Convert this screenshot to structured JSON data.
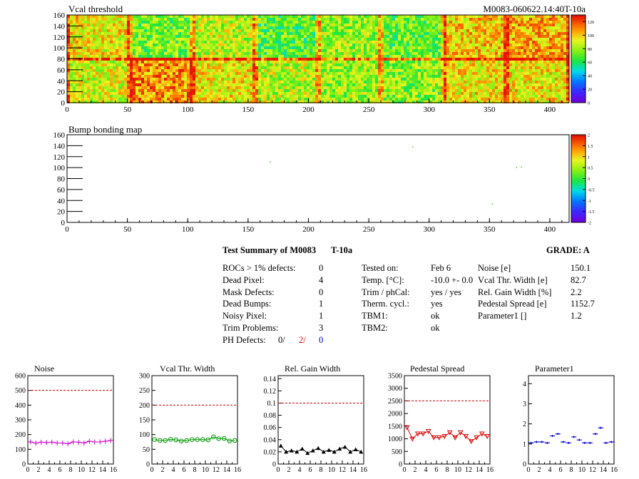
{
  "vcal": {
    "title": "Vcal threshold",
    "id_label": "M0083-060622.14:40T-10a",
    "x_ticks": [
      "0",
      "50",
      "100",
      "150",
      "200",
      "250",
      "300",
      "350",
      "400"
    ],
    "y_ticks": [
      "0",
      "20",
      "40",
      "60",
      "80",
      "100",
      "120",
      "140",
      "160"
    ],
    "palette_ticks": [
      "0",
      "20",
      "40",
      "60",
      "80",
      "100",
      "120"
    ]
  },
  "bump": {
    "title": "Bump bonding map",
    "x_ticks": [
      "0",
      "50",
      "100",
      "150",
      "200",
      "250",
      "300",
      "350",
      "400"
    ],
    "y_ticks": [
      "0",
      "20",
      "40",
      "60",
      "80",
      "100",
      "120",
      "140",
      "160"
    ],
    "palette_ticks": [
      "-2",
      "-1.5",
      "-1",
      "-0.5",
      "0",
      "0.5",
      "1",
      "1.5",
      "2"
    ]
  },
  "summary": {
    "title": "Test Summary of M0083",
    "temp_tag": "T-10a",
    "grade": "GRADE:  A",
    "rows": [
      {
        "label": "ROCs > 1% defects:",
        "value": "0"
      },
      {
        "label": "Dead Pixel:",
        "value": "4"
      },
      {
        "label": "Mask Defects:",
        "value": "0"
      },
      {
        "label": "Dead Bumps:",
        "value": "1"
      },
      {
        "label": "Noisy Pixel:",
        "value": "1"
      },
      {
        "label": "Trim Problems:",
        "value": "3"
      }
    ],
    "ph_label": "PH Defects:",
    "ph_values": [
      "0/",
      "2/",
      "0"
    ],
    "conditions": [
      {
        "label": "Tested on:",
        "value": "Feb 6"
      },
      {
        "label": "Temp. [°C]:",
        "value": "-10.0 +- 0.0"
      },
      {
        "label": "Trim / phCal:",
        "value": "yes / yes"
      },
      {
        "label": "Therm. cycl.:",
        "value": "yes"
      },
      {
        "label": "TBM1:",
        "value": "ok"
      },
      {
        "label": "TBM2:",
        "value": "ok"
      }
    ],
    "results": [
      {
        "label": "Noise [e]",
        "value": "150.1"
      },
      {
        "label": "Vcal Thr. Width [e]",
        "value": "82.7"
      },
      {
        "label": "Rel. Gain Width [%]",
        "value": "2.2"
      },
      {
        "label": "Pedestal Spread [e]",
        "value": "1152.7"
      },
      {
        "label": "Parameter1 []",
        "value": "1.2"
      }
    ]
  },
  "chart_data": [
    {
      "type": "heatmap",
      "title": "Vcal threshold",
      "xlim": [
        0,
        416
      ],
      "ylim": [
        0,
        160
      ],
      "z_range": [
        0,
        130
      ],
      "note_values": "per-ROC mean threshold (2 rows x 8 ROCs), top row ROCs 15..8 left to right",
      "roc_means_top": [
        95,
        75,
        85,
        70,
        80,
        72,
        100,
        105
      ],
      "roc_means_bottom": [
        90,
        110,
        95,
        85,
        80,
        78,
        95,
        95
      ]
    },
    {
      "type": "scatter",
      "title": "Bump bonding map",
      "xlim": [
        0,
        416
      ],
      "ylim": [
        0,
        160
      ],
      "z_range": [
        -2,
        2
      ],
      "x": [
        168,
        286,
        372,
        376,
        352
      ],
      "y": [
        111,
        139,
        101,
        102,
        35
      ]
    },
    {
      "type": "line",
      "title": "Noise",
      "ylim": [
        0,
        600
      ],
      "threshold": 500,
      "y_ticks": [
        "0",
        "100",
        "200",
        "300",
        "400",
        "500",
        "600"
      ],
      "color": "#cc00cc",
      "marker": "plus",
      "x": [
        0,
        1,
        2,
        3,
        4,
        5,
        6,
        7,
        8,
        9,
        10,
        11,
        12,
        13,
        14,
        15
      ],
      "values": [
        150,
        142,
        148,
        146,
        148,
        143,
        143,
        138,
        150,
        148,
        143,
        155,
        150,
        150,
        155,
        160
      ]
    },
    {
      "type": "line",
      "title": "Vcal Thr. Width",
      "ylim": [
        0,
        300
      ],
      "threshold": 200,
      "y_ticks": [
        "0",
        "50",
        "100",
        "150",
        "200",
        "250",
        "300"
      ],
      "color": "#009900",
      "marker": "circle",
      "x": [
        0,
        1,
        2,
        3,
        4,
        5,
        6,
        7,
        8,
        9,
        10,
        11,
        12,
        13,
        14,
        15
      ],
      "values": [
        83,
        80,
        80,
        84,
        82,
        78,
        80,
        83,
        83,
        83,
        82,
        92,
        86,
        87,
        78,
        80
      ]
    },
    {
      "type": "line",
      "title": "Rel. Gain Width",
      "ylim": [
        0,
        0.145
      ],
      "threshold": 0.1,
      "y_ticks": [
        "0",
        "0.02",
        "0.04",
        "0.06",
        "0.08",
        "0.1",
        "0.12",
        "0.14"
      ],
      "color": "#000000",
      "marker": "triangle",
      "x": [
        0,
        1,
        2,
        3,
        4,
        5,
        6,
        7,
        8,
        9,
        10,
        11,
        12,
        13,
        14,
        15
      ],
      "values": [
        0.03,
        0.02,
        0.022,
        0.02,
        0.025,
        0.018,
        0.022,
        0.026,
        0.02,
        0.023,
        0.02,
        0.025,
        0.028,
        0.02,
        0.024,
        0.02
      ]
    },
    {
      "type": "line",
      "title": "Pedestal Spread",
      "ylim": [
        0,
        3500
      ],
      "threshold": 2500,
      "y_ticks": [
        "0",
        "500",
        "1000",
        "1500",
        "2000",
        "2500",
        "3000",
        "3500"
      ],
      "color": "#dd0000",
      "marker": "triangle-down",
      "x": [
        0,
        1,
        2,
        3,
        4,
        5,
        6,
        7,
        8,
        9,
        10,
        11,
        12,
        13,
        14,
        15
      ],
      "values": [
        1450,
        1000,
        1200,
        1200,
        1300,
        1050,
        1050,
        1100,
        1250,
        1050,
        1250,
        1100,
        900,
        1050,
        1200,
        1100
      ]
    },
    {
      "type": "scatter",
      "title": "Parameter1",
      "ylim": [
        0,
        4.4
      ],
      "y_ticks": [
        "0",
        "1",
        "2",
        "3",
        "4"
      ],
      "color": "#0000cc",
      "marker": "hbar",
      "x": [
        0,
        1,
        2,
        3,
        4,
        5,
        6,
        7,
        8,
        9,
        10,
        11,
        12,
        13,
        14,
        15
      ],
      "values": [
        1.05,
        1.1,
        1.1,
        1.05,
        1.4,
        1.5,
        1.1,
        1.05,
        1.35,
        1.2,
        1.05,
        1.05,
        1.5,
        1.8,
        1.05,
        1.1
      ]
    },
    {
      "type": "axis",
      "x_ticks": [
        "0",
        "2",
        "4",
        "6",
        "8",
        "10",
        "12",
        "14",
        "16"
      ]
    }
  ]
}
